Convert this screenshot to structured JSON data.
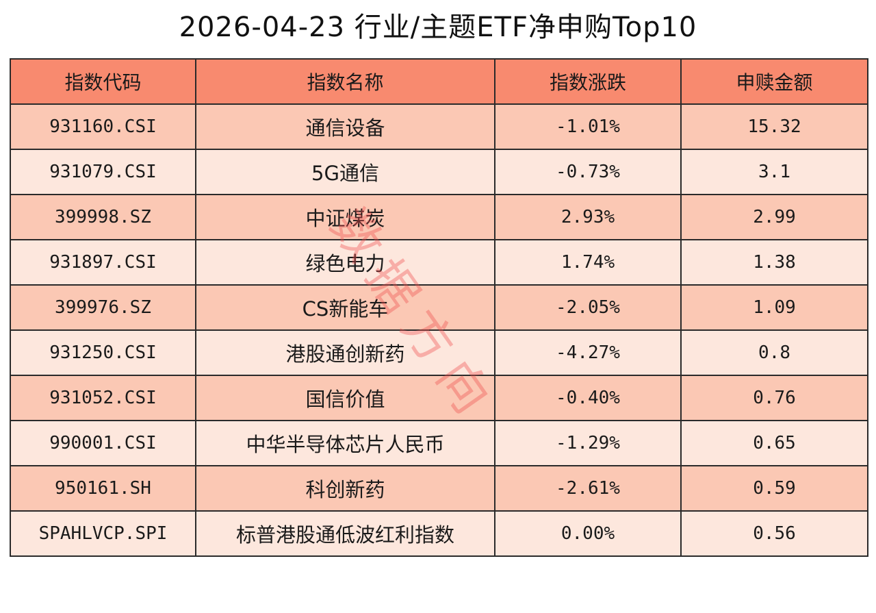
{
  "title": "2026-04-23 行业/主题ETF净申购Top10",
  "colors": {
    "header_bg": "#f88a6f",
    "row_dark_bg": "#fbc8b4",
    "row_light_bg": "#fde7dd",
    "border": "#2a2a2a",
    "watermark": "#f05050"
  },
  "table": {
    "headers": [
      "指数代码",
      "指数名称",
      "指数涨跌",
      "申赎金额"
    ],
    "rows": [
      {
        "code": "931160.CSI",
        "name": "通信设备",
        "change": "-1.01%",
        "amount": "15.32"
      },
      {
        "code": "931079.CSI",
        "name": "5G通信",
        "change": "-0.73%",
        "amount": "3.1"
      },
      {
        "code": "399998.SZ",
        "name": "中证煤炭",
        "change": "2.93%",
        "amount": "2.99"
      },
      {
        "code": "931897.CSI",
        "name": "绿色电力",
        "change": "1.74%",
        "amount": "1.38"
      },
      {
        "code": "399976.SZ",
        "name": "CS新能车",
        "change": "-2.05%",
        "amount": "1.09"
      },
      {
        "code": "931250.CSI",
        "name": "港股通创新药",
        "change": "-4.27%",
        "amount": "0.8"
      },
      {
        "code": "931052.CSI",
        "name": "国信价值",
        "change": "-0.40%",
        "amount": "0.76"
      },
      {
        "code": "990001.CSI",
        "name": "中华半导体芯片人民币",
        "change": "-1.29%",
        "amount": "0.65"
      },
      {
        "code": "950161.SH",
        "name": "科创新药",
        "change": "-2.61%",
        "amount": "0.59"
      },
      {
        "code": "SPAHLVCP.SPI",
        "name": "标普港股通低波红利指数",
        "change": "0.00%",
        "amount": "0.56"
      }
    ]
  },
  "watermark": "数据方向"
}
